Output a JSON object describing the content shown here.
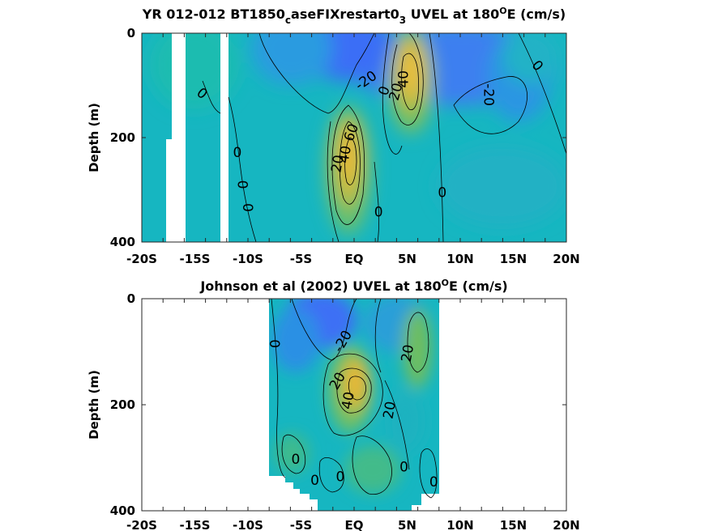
{
  "chart_data": [
    {
      "type": "heatmap",
      "title_parts": [
        "YR 012-012 BT1850",
        "c",
        "aseFIXrestart0",
        "3",
        " UVEL at 180",
        "O",
        "E (cm/s)"
      ],
      "xlabel": "",
      "ylabel": "Depth (m)",
      "xlim": [
        -20,
        20
      ],
      "ylim": [
        400,
        0
      ],
      "xticks": [
        -20,
        -18,
        -16,
        -14,
        -12,
        -10,
        -8,
        -6,
        -4,
        -2,
        0,
        2,
        4,
        6,
        8,
        10,
        12,
        14,
        16,
        18,
        20
      ],
      "xticklabels": [
        "-20S",
        "-15S",
        "-10S",
        "-5S",
        "EQ",
        "5N",
        "10N",
        "15N",
        "20N"
      ],
      "xticklabel_values": [
        -20,
        -15,
        -10,
        -5,
        0,
        5,
        10,
        15,
        20
      ],
      "yticks": [
        0,
        200,
        400
      ],
      "yticklabels": [
        "0",
        "200",
        "400"
      ],
      "colormap": "parula",
      "clim": [
        -40,
        80
      ],
      "contour_levels": [
        -20,
        0,
        20,
        40,
        60
      ],
      "contour_labels": [
        {
          "text": "0",
          "lat": -14.3,
          "depth": 115,
          "angle": 40
        },
        {
          "text": "0",
          "lat": -11.0,
          "depth": 228,
          "angle": 0
        },
        {
          "text": "0",
          "lat": -10.5,
          "depth": 290,
          "angle": 90
        },
        {
          "text": "0",
          "lat": -10.0,
          "depth": 334,
          "angle": 90
        },
        {
          "text": "-20",
          "lat": 1.1,
          "depth": 90,
          "angle": -35
        },
        {
          "text": "60",
          "lat": -0.3,
          "depth": 190,
          "angle": -70
        },
        {
          "text": "40",
          "lat": -0.9,
          "depth": 232,
          "angle": -80
        },
        {
          "text": "20",
          "lat": -1.6,
          "depth": 250,
          "angle": -80
        },
        {
          "text": "0",
          "lat": 2.8,
          "depth": 110,
          "angle": -70
        },
        {
          "text": "20",
          "lat": 3.9,
          "depth": 112,
          "angle": -75
        },
        {
          "text": "40",
          "lat": 4.6,
          "depth": 88,
          "angle": -90
        },
        {
          "text": "0",
          "lat": 2.3,
          "depth": 342,
          "angle": 0
        },
        {
          "text": "0",
          "lat": 8.3,
          "depth": 305,
          "angle": 0
        },
        {
          "text": "-20",
          "lat": 12.7,
          "depth": 118,
          "angle": 90
        },
        {
          "text": "0",
          "lat": 17.3,
          "depth": 62,
          "angle": 50
        }
      ],
      "features": [
        {
          "name": "surface westward flow",
          "lat": 0,
          "depth": 40,
          "value": -25
        },
        {
          "name": "equatorial undercurrent core",
          "lat": -0.3,
          "depth": 200,
          "value": 65
        },
        {
          "name": "north equatorial countercurrent core",
          "lat": 5,
          "depth": 90,
          "value": 60
        },
        {
          "name": "north equatorial current",
          "lat": 12.5,
          "depth": 110,
          "value": -22
        }
      ]
    },
    {
      "type": "heatmap",
      "title_parts": [
        "Johnson et al (2002) UVEL at 180",
        "O",
        "E (cm/s)"
      ],
      "xlabel": "",
      "ylabel": "Depth (m)",
      "xlim": [
        -20,
        20
      ],
      "ylim": [
        400,
        0
      ],
      "xticks": [
        -20,
        -18,
        -16,
        -14,
        -12,
        -10,
        -8,
        -6,
        -4,
        -2,
        0,
        2,
        4,
        6,
        8,
        10,
        12,
        14,
        16,
        18,
        20
      ],
      "xticklabels": [
        "-20S",
        "-15S",
        "-10S",
        "-5S",
        "EQ",
        "5N",
        "10N",
        "15N",
        "20N"
      ],
      "xticklabel_values": [
        -20,
        -15,
        -10,
        -5,
        0,
        5,
        10,
        15,
        20
      ],
      "yticks": [
        0,
        200,
        400
      ],
      "yticklabels": [
        "0",
        "200",
        "400"
      ],
      "colormap": "parula",
      "clim": [
        -40,
        80
      ],
      "data_extent_lat": [
        -8,
        8
      ],
      "contour_levels": [
        -20,
        0,
        20,
        40
      ],
      "contour_labels": [
        {
          "text": "0",
          "lat": -7.5,
          "depth": 85,
          "angle": 90
        },
        {
          "text": "-20",
          "lat": -1.1,
          "depth": 80,
          "angle": -60
        },
        {
          "text": "20",
          "lat": -1.6,
          "depth": 155,
          "angle": -60
        },
        {
          "text": "40",
          "lat": -0.6,
          "depth": 192,
          "angle": -80
        },
        {
          "text": "20",
          "lat": 3.3,
          "depth": 210,
          "angle": -80
        },
        {
          "text": "20",
          "lat": 5.0,
          "depth": 103,
          "angle": -80
        },
        {
          "text": "0",
          "lat": -5.5,
          "depth": 302,
          "angle": 0
        },
        {
          "text": "0",
          "lat": -3.7,
          "depth": 342,
          "angle": 0
        },
        {
          "text": "0",
          "lat": -1.3,
          "depth": 335,
          "angle": 0
        },
        {
          "text": "0",
          "lat": 4.7,
          "depth": 317,
          "angle": 0
        },
        {
          "text": "0",
          "lat": 7.5,
          "depth": 345,
          "angle": 0
        }
      ],
      "features": [
        {
          "name": "surface westward flow",
          "lat": -2.5,
          "depth": 60,
          "value": -25
        },
        {
          "name": "equatorial undercurrent core",
          "lat": 0.5,
          "depth": 175,
          "value": 45
        },
        {
          "name": "north equatorial countercurrent",
          "lat": 6,
          "depth": 100,
          "value": 22
        }
      ]
    }
  ],
  "colors": {
    "negative_strong": "#3d6ef5",
    "negative": "#2e8fe6",
    "zero": "#16b6c1",
    "slight_positive": "#3fc08a",
    "positive": "#8bbf4a",
    "strong_positive": "#e0b738",
    "max_positive": "#f5c040"
  }
}
